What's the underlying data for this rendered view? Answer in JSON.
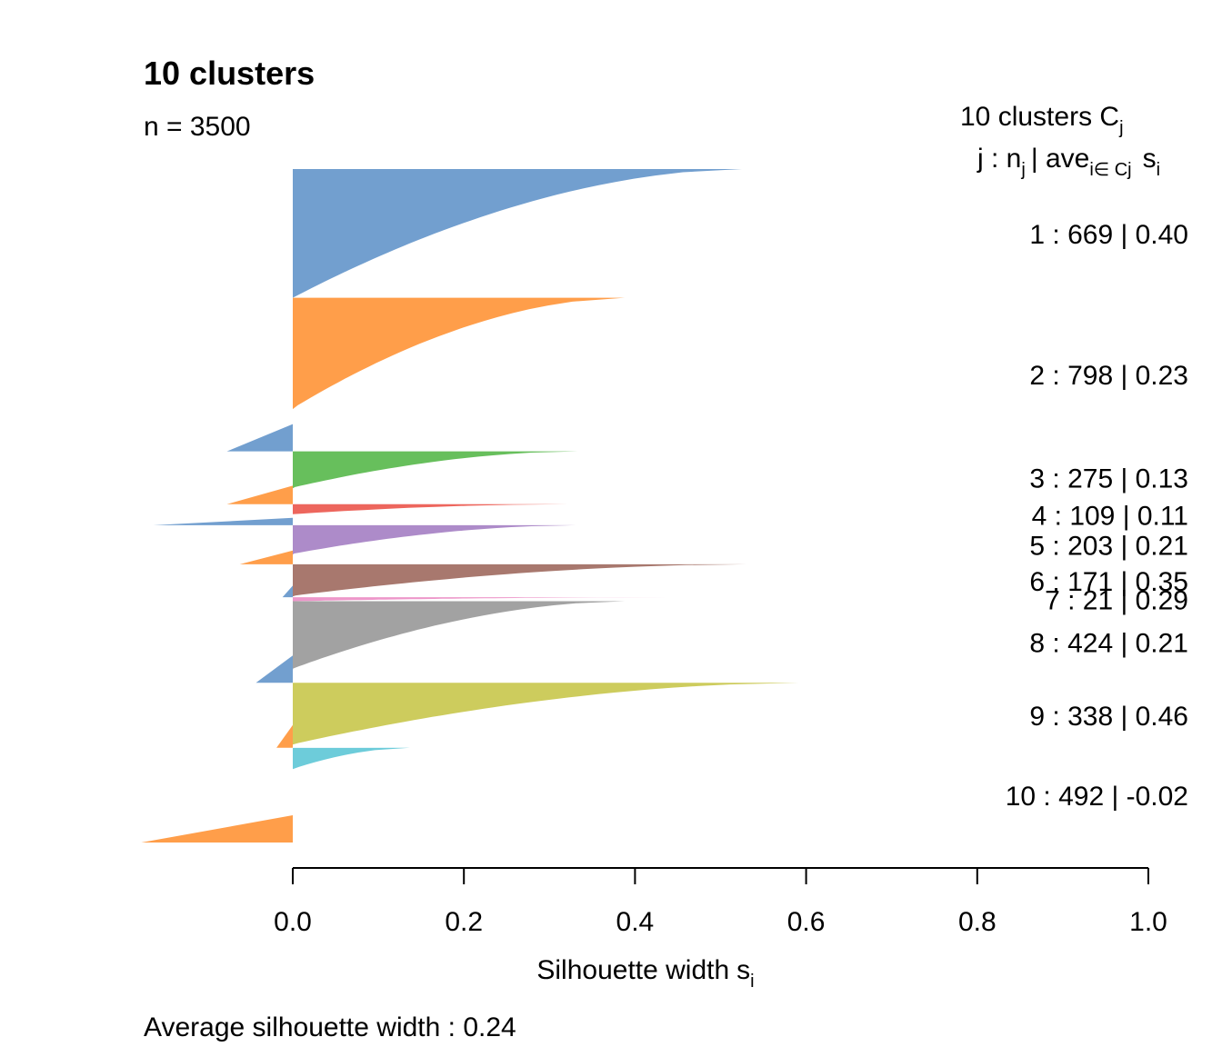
{
  "chart_data": {
    "type": "bar",
    "title": "10 clusters",
    "subtitle": "n = 3500",
    "xlabel": "Silhouette width",
    "xlabel_subscript": "i",
    "xlabel_prefix_symbol": "s",
    "xlim": [
      0,
      1
    ],
    "xticks": [
      "0.0",
      "0.2",
      "0.4",
      "0.6",
      "0.8",
      "1.0"
    ],
    "footer": "Average silhouette width :  0.24",
    "legend_header": {
      "line1_text": "10  clusters  C",
      "line1_sub": "j",
      "line2_a": "j :  n",
      "line2_a_sub": "j",
      "line2_b": "| ave",
      "line2_b_sub": "i∈ Cj",
      "line2_c": "s",
      "line2_c_sub": "i"
    },
    "clusters": [
      {
        "label": "1 :   669  |  0.40",
        "n": 669,
        "ave": 0.4,
        "max": 0.525,
        "min": 0.0,
        "color": "#729fcf"
      },
      {
        "label": "2 :   798  |  0.23",
        "n": 798,
        "ave": 0.23,
        "max": 0.388,
        "min": -0.077,
        "color": "#ff9e4a"
      },
      {
        "label": "3 :   275  |  0.13",
        "n": 275,
        "ave": 0.13,
        "max": 0.333,
        "min": -0.077,
        "color": "#67bf5c"
      },
      {
        "label": "4 :   109  |  0.11",
        "n": 109,
        "ave": 0.11,
        "max": 0.321,
        "min": -0.163,
        "color": "#ed665d"
      },
      {
        "label": "5 :   203  |  0.21",
        "n": 203,
        "ave": 0.21,
        "max": 0.331,
        "min": -0.062,
        "color": "#ad8bc9"
      },
      {
        "label": "6 :   171  |  0.35",
        "n": 171,
        "ave": 0.35,
        "max": 0.53,
        "min": -0.012,
        "color": "#a8786e"
      },
      {
        "label": "7 :    21  |  0.29",
        "n": 21,
        "ave": 0.29,
        "max": 0.441,
        "min": 0.0,
        "color": "#ed97ca"
      },
      {
        "label": "8 :   424  |  0.21",
        "n": 424,
        "ave": 0.21,
        "max": 0.388,
        "min": -0.043,
        "color": "#a2a2a2"
      },
      {
        "label": "9 :   338  |  0.46",
        "n": 338,
        "ave": 0.46,
        "max": 0.591,
        "min": -0.019,
        "color": "#cdcc5d"
      },
      {
        "label": "10 :   492  |  -0.02",
        "n": 492,
        "ave": -0.02,
        "max": 0.137,
        "min": -0.177,
        "color": "#6dccda"
      }
    ]
  }
}
